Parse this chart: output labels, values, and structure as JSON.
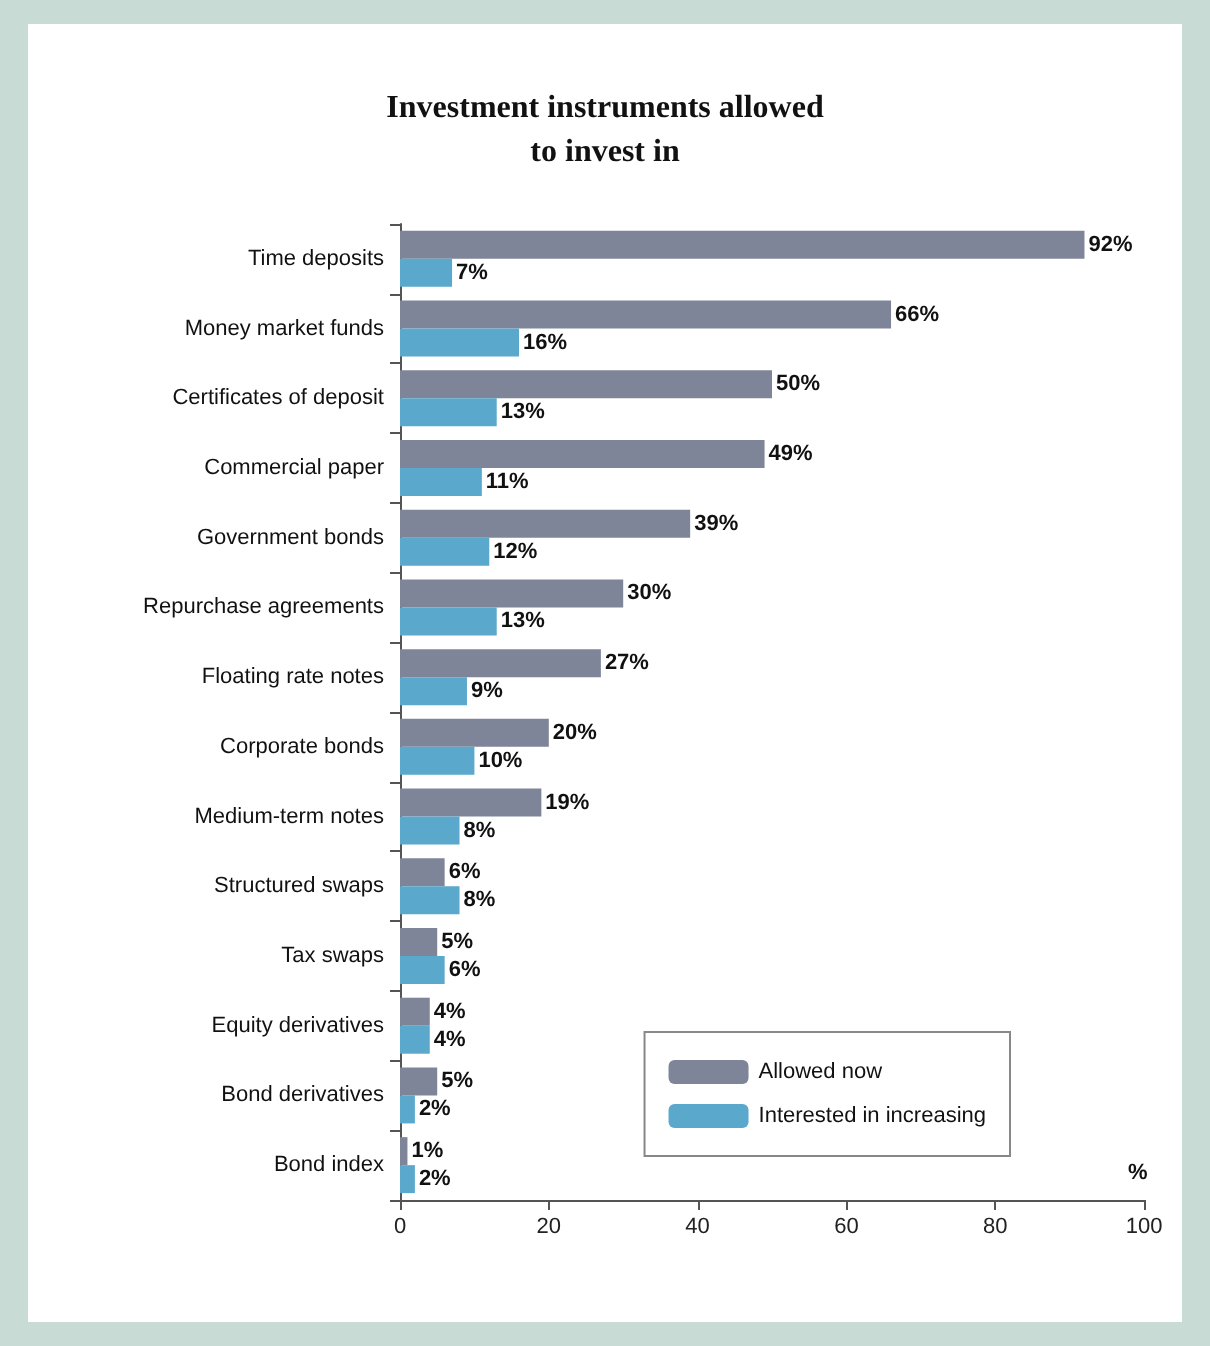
{
  "chart_data": {
    "type": "bar",
    "orientation": "horizontal",
    "title": "Investment instruments allowed\nto invest in",
    "xlabel": "%",
    "categories": [
      "Time deposits",
      "Money market funds",
      "Certificates of deposit",
      "Commercial paper",
      "Government bonds",
      "Repurchase agreements",
      "Floating rate notes",
      "Corporate bonds",
      "Medium-term notes",
      "Structured swaps",
      "Tax swaps",
      "Equity derivatives",
      "Bond derivatives",
      "Bond index"
    ],
    "series": [
      {
        "name": "Allowed now",
        "color": "#7f8599",
        "values": [
          92,
          66,
          50,
          49,
          39,
          30,
          27,
          20,
          19,
          6,
          5,
          4,
          5,
          1
        ],
        "value_labels": [
          "92%",
          "66%",
          "50%",
          "49%",
          "39%",
          "30%",
          "27%",
          "20%",
          "19%",
          "6%",
          "5%",
          "4%",
          "5%",
          "1%"
        ]
      },
      {
        "name": "Interested in increasing",
        "color": "#5aa8cc",
        "values": [
          7,
          16,
          13,
          11,
          12,
          13,
          9,
          10,
          8,
          8,
          6,
          4,
          2,
          2
        ],
        "value_labels": [
          "7%",
          "16%",
          "13%",
          "11%",
          "12%",
          "13%",
          "9%",
          "10%",
          "8%",
          "8%",
          "6%",
          "4%",
          "2%",
          "2%"
        ]
      }
    ],
    "xlim": [
      0,
      100
    ],
    "xticks": [
      0,
      20,
      40,
      60,
      80,
      100
    ],
    "grid": false,
    "legend": "bottom right"
  }
}
